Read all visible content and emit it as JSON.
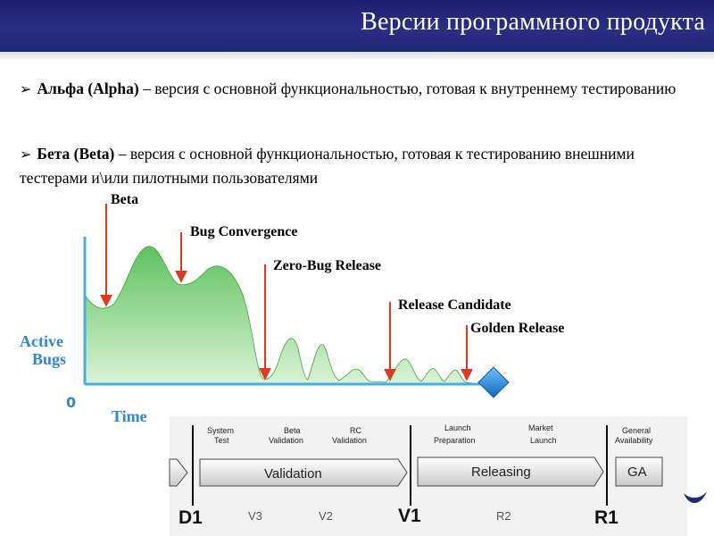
{
  "slide": {
    "title": "Версии программного продукта",
    "bullets": [
      {
        "term": "Альфа (Alpha)",
        "text": " – версия с основной функциональностью, готовая к внутреннему тестированию"
      },
      {
        "term": "Бета (Beta)",
        "text": " – версия с основной функциональностью, готовая к тестированию внешними тестерами и\\или пилотными пользователями"
      }
    ]
  },
  "diagram": {
    "y_axis_label_line1": "Active",
    "y_axis_label_line2": "Bugs",
    "zero_label": "0",
    "x_axis_label": "Time",
    "milestones": {
      "beta": "Beta",
      "bug_convergence": "Bug Convergence",
      "zero_bug": "Zero-Bug Release",
      "release_candidate": "Release Candidate",
      "golden": "Golden Release"
    },
    "phases": {
      "system_test_1": "System",
      "system_test_2": "Test",
      "beta_validation_1": "Beta",
      "beta_validation_2": "Validation",
      "rc_validation_1": "RC",
      "rc_validation_2": "Validation",
      "launch_prep_1": "Launch",
      "launch_prep_2": "Preparation",
      "market_launch_1": "Market",
      "market_launch_2": "Launch",
      "general_avail_1": "General",
      "general_avail_2": "Availability",
      "validation": "Validation",
      "releasing": "Releasing",
      "ga": "GA"
    },
    "points": {
      "d1": "D1",
      "v3": "V3",
      "v2": "V2",
      "v1": "V1",
      "r2": "R2",
      "r1": "R1"
    },
    "colors": {
      "curve_fill": "#7ed07e",
      "axis": "#45aee8",
      "arrows": "#e03a1e",
      "title_bar": "#22277a"
    }
  }
}
